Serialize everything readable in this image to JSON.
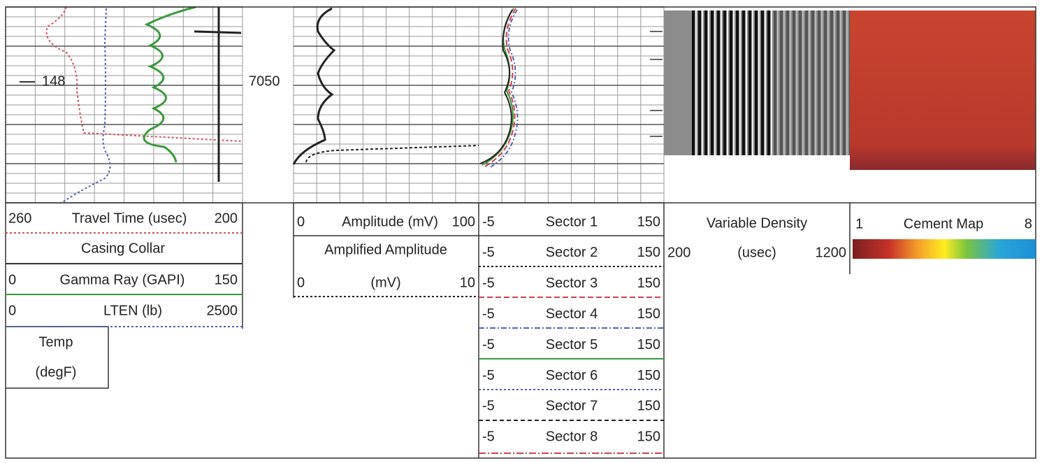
{
  "depth_labels": [
    "148",
    "7050"
  ],
  "track1": {
    "travel_time": {
      "min": "260",
      "name": "Travel Time (usec)",
      "max": "200"
    },
    "casing_collar": {
      "name": "Casing Collar"
    },
    "gamma_ray": {
      "min": "0",
      "name": "Gamma Ray (GAPI)",
      "max": "150"
    },
    "lten": {
      "min": "0",
      "name": "LTEN (lb)",
      "max": "2500"
    },
    "temp": {
      "lines": [
        "Temp",
        "(degF)"
      ]
    }
  },
  "track2": {
    "amplitude": {
      "min": "0",
      "name": "Amplitude (mV)",
      "max": "100"
    },
    "amplified": {
      "name": "Amplified Amplitude",
      "min": "0",
      "unit": "(mV)",
      "max": "10"
    }
  },
  "track3": {
    "sectors": [
      {
        "min": "-5",
        "name": "Sector 1",
        "max": "150"
      },
      {
        "min": "-5",
        "name": "Sector 2",
        "max": "150"
      },
      {
        "min": "-5",
        "name": "Sector 3",
        "max": "150"
      },
      {
        "min": "-5",
        "name": "Sector 4",
        "max": "150"
      },
      {
        "min": "-5",
        "name": "Sector 5",
        "max": "150"
      },
      {
        "min": "-5",
        "name": "Sector 6",
        "max": "150"
      },
      {
        "min": "-5",
        "name": "Sector 7",
        "max": "150"
      },
      {
        "min": "-5",
        "name": "Sector 8",
        "max": "150"
      }
    ]
  },
  "track4": {
    "name": "Variable Density",
    "min": "200",
    "unit": "(usec)",
    "max": "1200"
  },
  "track5": {
    "min": "1",
    "name": "Cement Map",
    "max": "8"
  }
}
